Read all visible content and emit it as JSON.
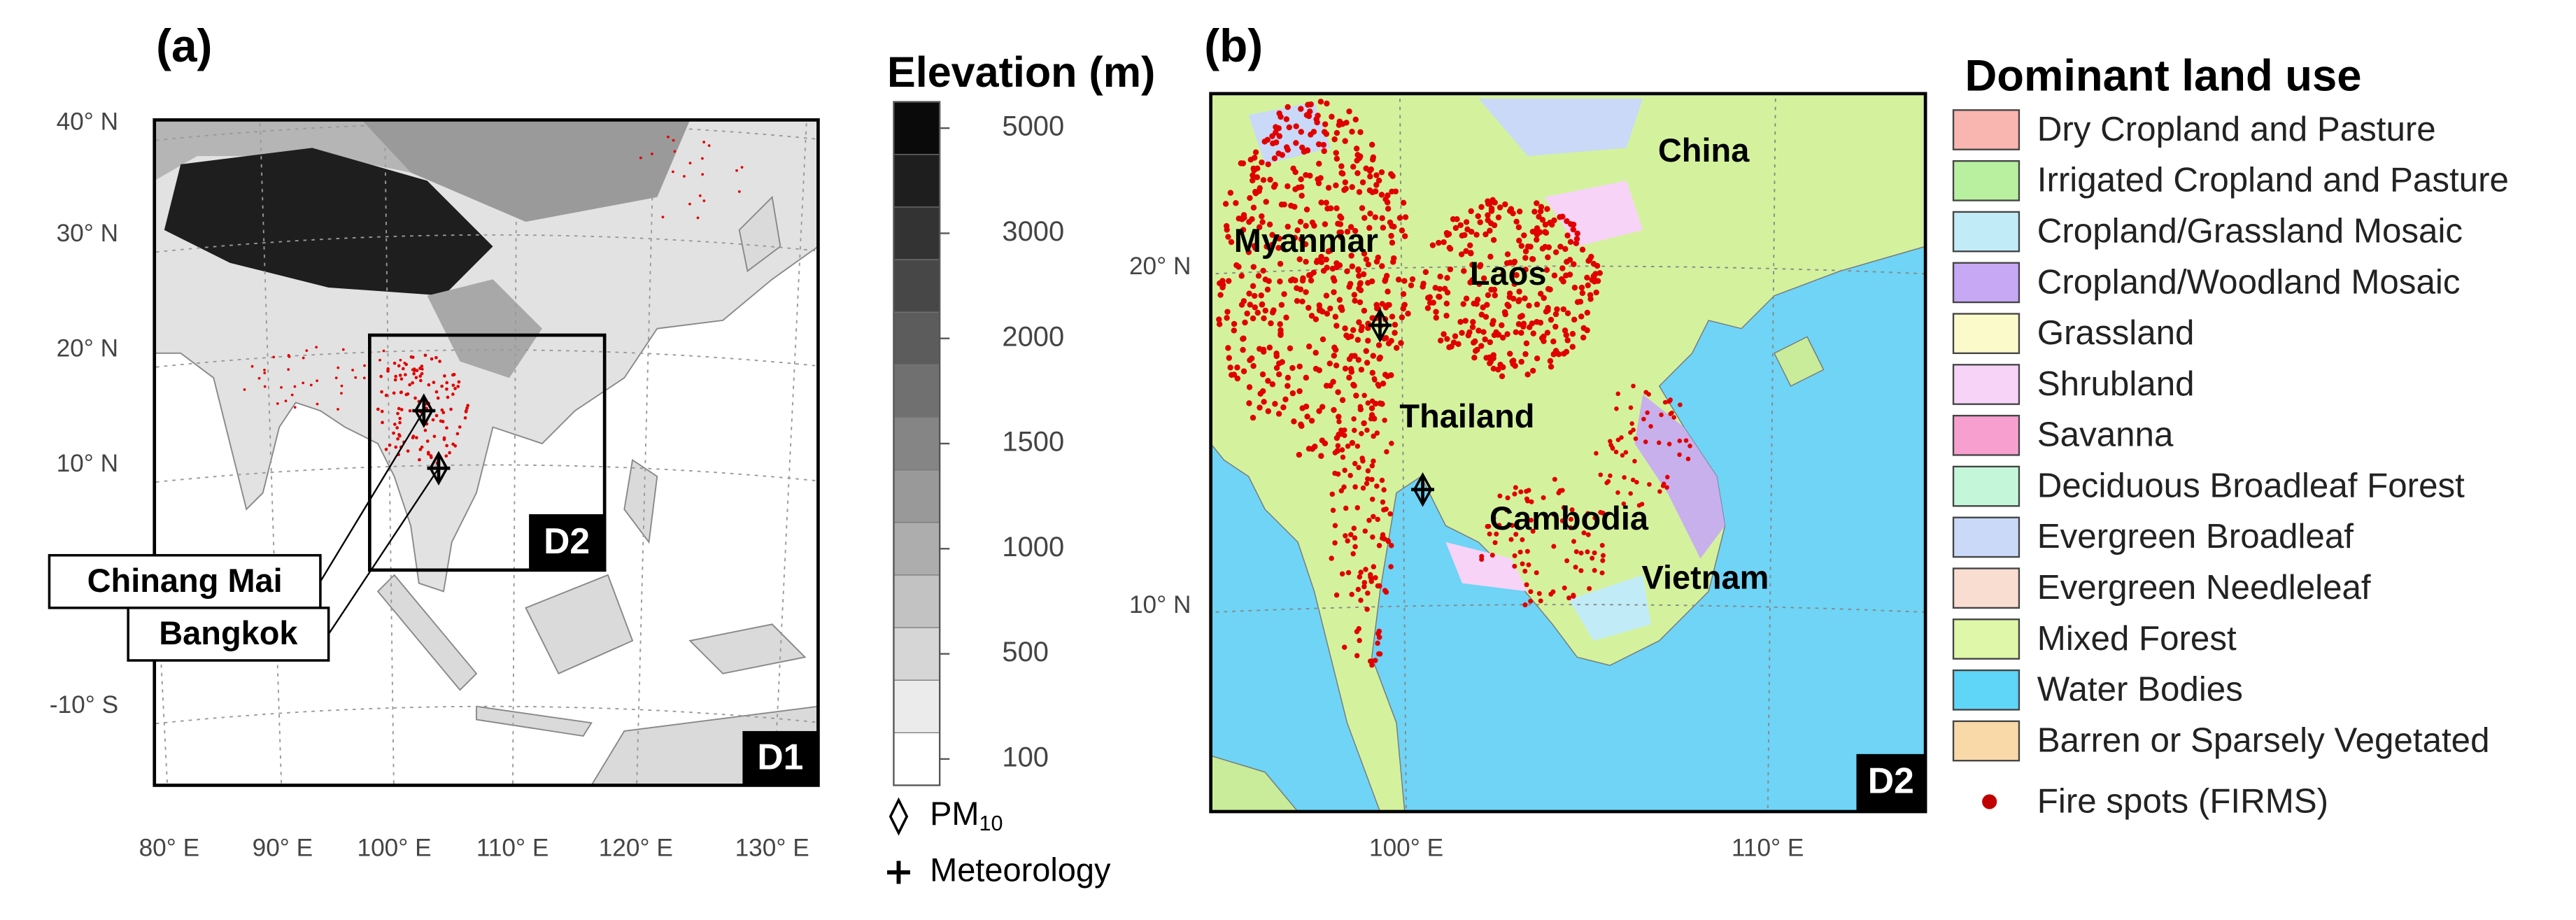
{
  "panel_a": {
    "label": "(a)",
    "lat_labels": [
      "40° N",
      "30° N",
      "20° N",
      "10° N",
      "-10° S"
    ],
    "lon_labels": [
      "80° E",
      "90° E",
      "100° E",
      "110° E",
      "120° E",
      "130° E"
    ],
    "domains": [
      "D1",
      "D2"
    ],
    "callouts": [
      "Chinang Mai",
      "Bangkok"
    ]
  },
  "elevation_colorbar": {
    "title": "Elevation (m)",
    "ticks": [
      100,
      500,
      1000,
      1500,
      2000,
      3000,
      5000
    ]
  },
  "marker_legend": {
    "pm": {
      "text": "PM",
      "subscript": "10"
    },
    "meteorology": "Meteorology"
  },
  "panel_b": {
    "label": "(b)",
    "lat_labels": [
      "20° N",
      "10° N"
    ],
    "lon_labels": [
      "100° E",
      "110° E"
    ],
    "countries": [
      "China",
      "Myanmar",
      "Laos",
      "Thailand",
      "Cambodia",
      "Vietnam"
    ],
    "domain": "D2"
  },
  "land_use_legend": {
    "title": "Dominant land use",
    "items": [
      {
        "name": "Dry Cropland and Pasture",
        "color": "#f9b5b0"
      },
      {
        "name": "Irrigated Cropland and Pasture",
        "color": "#b8f0a0"
      },
      {
        "name": "Cropland/Grassland Mosaic",
        "color": "#c1ecf7"
      },
      {
        "name": "Cropland/Woodland Mosaic",
        "color": "#c6a8f5"
      },
      {
        "name": "Grassland",
        "color": "#fafacb"
      },
      {
        "name": "Shrubland",
        "color": "#f7d3f7"
      },
      {
        "name": "Savanna",
        "color": "#f7a0d0"
      },
      {
        "name": "Deciduous Broadleaf Forest",
        "color": "#c4f7d9"
      },
      {
        "name": "Evergreen Broadleaf",
        "color": "#c9d9f7"
      },
      {
        "name": "Evergreen Needleleaf",
        "color": "#f9ddd0"
      },
      {
        "name": "Mixed Forest",
        "color": "#def7a8"
      },
      {
        "name": "Water Bodies",
        "color": "#5fd5f7"
      },
      {
        "name": "Barren or Sparsely Vegetated",
        "color": "#f9d9a8"
      }
    ],
    "fire": "Fire spots (FIRMS)"
  }
}
